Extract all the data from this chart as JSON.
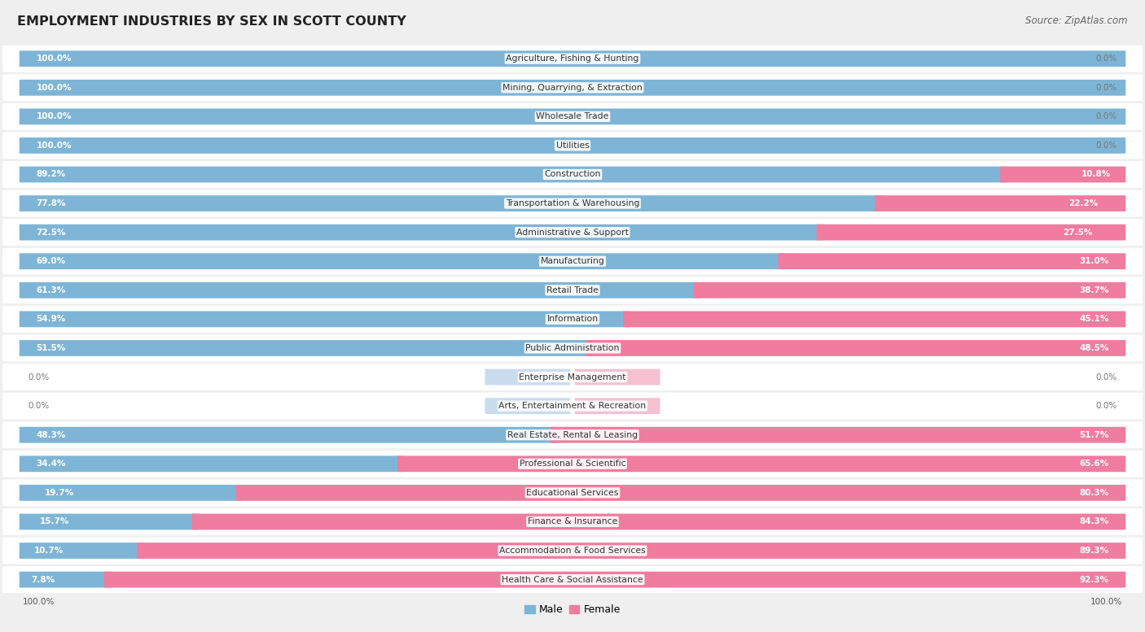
{
  "title": "EMPLOYMENT INDUSTRIES BY SEX IN SCOTT COUNTY",
  "source": "Source: ZipAtlas.com",
  "categories": [
    "Agriculture, Fishing & Hunting",
    "Mining, Quarrying, & Extraction",
    "Wholesale Trade",
    "Utilities",
    "Construction",
    "Transportation & Warehousing",
    "Administrative & Support",
    "Manufacturing",
    "Retail Trade",
    "Information",
    "Public Administration",
    "Enterprise Management",
    "Arts, Entertainment & Recreation",
    "Real Estate, Rental & Leasing",
    "Professional & Scientific",
    "Educational Services",
    "Finance & Insurance",
    "Accommodation & Food Services",
    "Health Care & Social Assistance"
  ],
  "male": [
    100.0,
    100.0,
    100.0,
    100.0,
    89.2,
    77.8,
    72.5,
    69.0,
    61.3,
    54.9,
    51.5,
    0.0,
    0.0,
    48.3,
    34.4,
    19.7,
    15.7,
    10.7,
    7.8
  ],
  "female": [
    0.0,
    0.0,
    0.0,
    0.0,
    10.8,
    22.2,
    27.5,
    31.0,
    38.7,
    45.1,
    48.5,
    0.0,
    0.0,
    51.7,
    65.6,
    80.3,
    84.3,
    89.3,
    92.3
  ],
  "male_color": "#7eb5d6",
  "female_color": "#f07ca0",
  "bg_color": "#efefef",
  "row_bg_color": "#ffffff",
  "title_fontsize": 11.5,
  "source_fontsize": 8.5,
  "bar_label_fontsize": 7.5,
  "category_fontsize": 7.8
}
